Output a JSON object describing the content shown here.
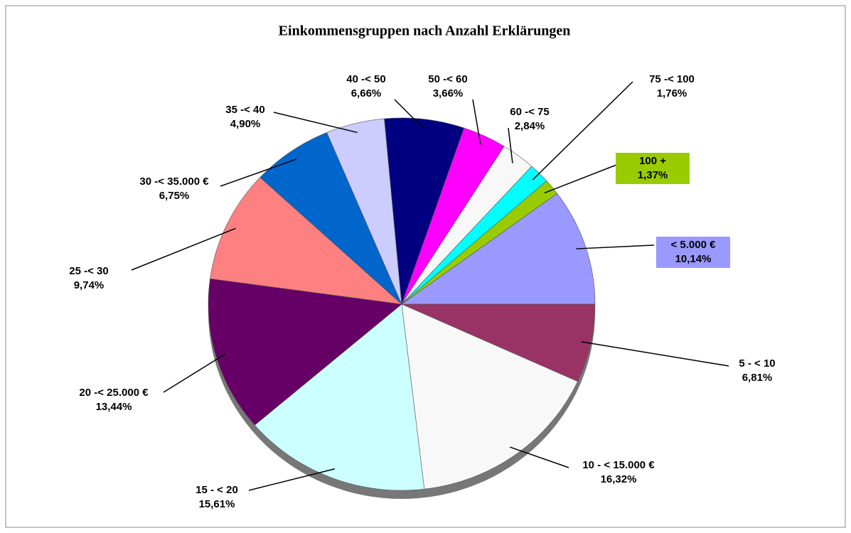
{
  "chart_data": {
    "type": "pie",
    "title": "Einkommensgruppen  nach Anzahl Erklärungen",
    "categories": [
      "<  5.000 €",
      "5 - < 10",
      "10 - < 15.000 €",
      "15 - < 20",
      "20 -< 25.000 €",
      "25 -< 30",
      "30 -< 35.000 €",
      "35 -< 40",
      "40 -< 50",
      "50 -< 60",
      "60 -< 75",
      "75 -< 100",
      "100 +"
    ],
    "values": [
      10.14,
      6.81,
      16.32,
      15.61,
      13.44,
      9.74,
      6.75,
      4.9,
      6.66,
      3.66,
      2.84,
      1.76,
      1.37
    ],
    "value_labels": [
      "10,14%",
      "6,81%",
      "16,32%",
      "15,61%",
      "13,44%",
      "9,74%",
      "6,75%",
      "4,90%",
      "6,66%",
      "3,66%",
      "2,84%",
      "1,76%",
      "1,37%"
    ],
    "colors": [
      "#9999ff",
      "#993366",
      "#f8f8f8",
      "#ccffff",
      "#660066",
      "#ff8080",
      "#0066cc",
      "#ccccff",
      "#000080",
      "#ff00ff",
      "#f8f8f8",
      "#00ffff",
      "#99cc00"
    ]
  }
}
